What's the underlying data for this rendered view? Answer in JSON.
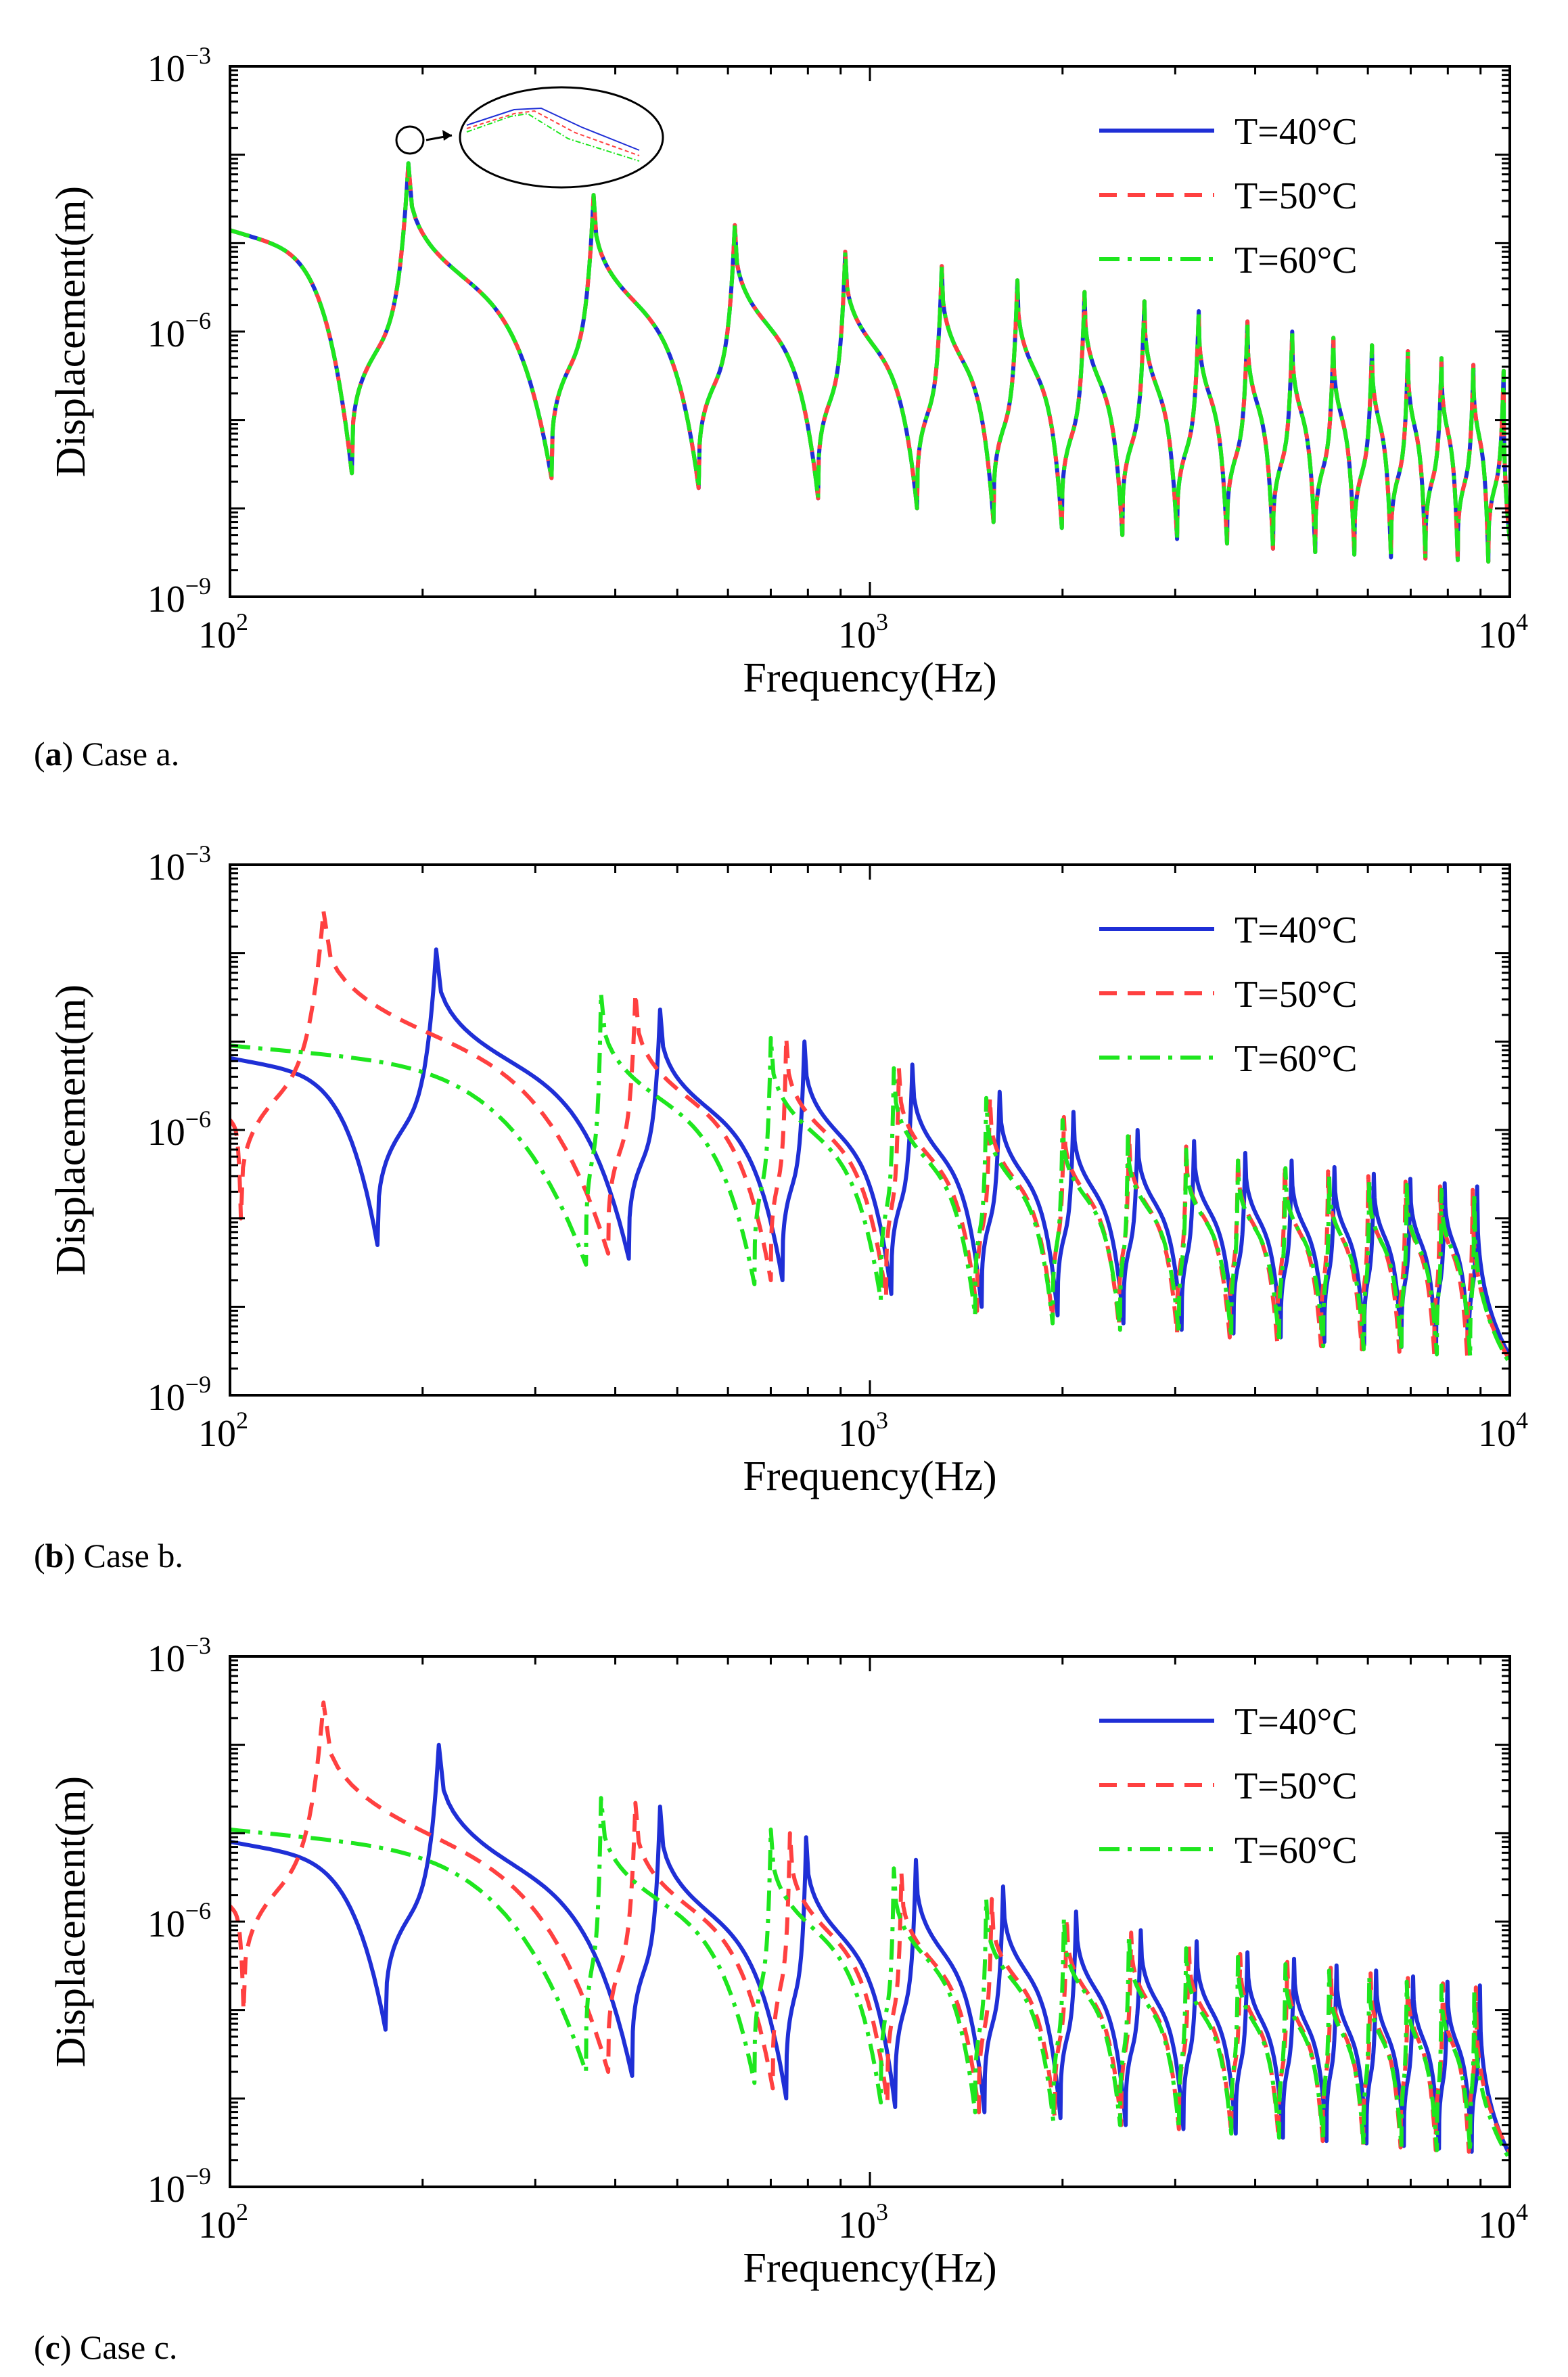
{
  "chart_data": [
    {
      "panel": "a",
      "type": "line",
      "caption_letter": "a",
      "caption_text": " Case a.",
      "xlabel": "Frequency(Hz)",
      "ylabel": "Displacement(m)",
      "xscale": "log",
      "yscale": "log",
      "xlim": [
        100,
        10000
      ],
      "ylim": [
        1e-09,
        0.001
      ],
      "x_ticks": [
        {
          "base": "10",
          "exp": "2",
          "value": 100
        },
        {
          "base": "10",
          "exp": "3",
          "value": 1000
        },
        {
          "base": "10",
          "exp": "4",
          "value": 10000
        }
      ],
      "y_ticks": [
        {
          "base": "10",
          "exp": "−3",
          "value": 0.001
        },
        {
          "base": "10",
          "exp": "−6",
          "value": 1e-06
        },
        {
          "base": "10",
          "exp": "−9",
          "value": 1e-09
        }
      ],
      "legend": "top-right",
      "has_zoom_inset": true,
      "series": [
        {
          "name": "T=40°C",
          "color": "#1f2fd6",
          "style": "solid",
          "start": 1.4e-05,
          "resonances": [
            190,
            370,
            615,
            915,
            1295,
            1700,
            2165,
            2685,
            3265,
            3890,
            4570,
            5300,
            6090,
            6930,
            7820,
            8770,
            9780
          ],
          "anti_resonances": [
            155,
            318,
            540,
            830,
            1185,
            1560,
            1995,
            2480,
            3020,
            3615,
            4265,
            4965,
            5715,
            6520,
            7380,
            8290,
            9255
          ],
          "res_peaks": [
            8e-05,
            3.5e-05,
            1.6e-05,
            8e-06,
            5.5e-06,
            3.8e-06,
            2.8e-06,
            2.2e-06,
            1.7e-06,
            1.3e-06,
            1e-06,
            8.5e-07,
            7e-07,
            6e-07,
            5e-07,
            4.2e-07,
            3.6e-07
          ],
          "anti_dips": [
            2.5e-08,
            2.2e-08,
            1.7e-08,
            1.3e-08,
            1e-08,
            7e-09,
            6e-09,
            5e-09,
            4.5e-09,
            4e-09,
            3.5e-09,
            3.2e-09,
            3e-09,
            2.8e-09,
            2.7e-09,
            2.6e-09,
            2.5e-09
          ]
        },
        {
          "name": "T=50°C",
          "color": "#ff4040",
          "style": "dashed",
          "start": 1.4e-05,
          "resonances": [
            190,
            370,
            615,
            915,
            1295,
            1700,
            2165,
            2685,
            3265,
            3890,
            4570,
            5300,
            6090,
            6930,
            7820,
            8770,
            9780
          ],
          "anti_resonances": [
            155,
            318,
            540,
            830,
            1185,
            1560,
            1995,
            2480,
            3020,
            3615,
            4265,
            4965,
            5715,
            6520,
            7380,
            8290,
            9255
          ],
          "res_peaks": [
            8e-05,
            3.5e-05,
            1.6e-05,
            8e-06,
            5.5e-06,
            3.8e-06,
            2.8e-06,
            2.2e-06,
            1.7e-06,
            1.3e-06,
            1e-06,
            8.5e-07,
            7e-07,
            6e-07,
            5e-07,
            4.2e-07,
            3.6e-07
          ],
          "anti_dips": [
            2.5e-08,
            2.2e-08,
            1.7e-08,
            1.3e-08,
            1e-08,
            7e-09,
            6e-09,
            5e-09,
            4.5e-09,
            4e-09,
            3.5e-09,
            3.2e-09,
            3e-09,
            2.8e-09,
            2.7e-09,
            2.6e-09,
            2.5e-09
          ]
        },
        {
          "name": "T=60°C",
          "color": "#1ee61e",
          "style": "dashdot",
          "start": 1.4e-05,
          "resonances": [
            190,
            370,
            615,
            915,
            1295,
            1700,
            2165,
            2685,
            3265,
            3890,
            4570,
            5300,
            6090,
            6930,
            7820,
            8770,
            9780
          ],
          "anti_resonances": [
            155,
            318,
            540,
            830,
            1185,
            1560,
            1995,
            2480,
            3020,
            3615,
            4265,
            4965,
            5715,
            6520,
            7380,
            8290,
            9255
          ],
          "res_peaks": [
            8e-05,
            3.5e-05,
            1.6e-05,
            8e-06,
            5.5e-06,
            3.8e-06,
            2.8e-06,
            2.2e-06,
            1.7e-06,
            1.3e-06,
            1e-06,
            8.5e-07,
            7e-07,
            6e-07,
            5e-07,
            4.2e-07,
            3.6e-07
          ],
          "anti_dips": [
            2.5e-08,
            2.2e-08,
            1.7e-08,
            1.3e-08,
            1e-08,
            7e-09,
            6e-09,
            5e-09,
            4.5e-09,
            4e-09,
            3.5e-09,
            3.2e-09,
            3e-09,
            2.8e-09,
            2.7e-09,
            2.6e-09,
            2.5e-09
          ]
        }
      ]
    },
    {
      "panel": "b",
      "type": "line",
      "caption_letter": "b",
      "caption_text": " Case b.",
      "xlabel": "Frequency(Hz)",
      "ylabel": "Displacement(m)",
      "xscale": "log",
      "yscale": "log",
      "xlim": [
        100,
        10000
      ],
      "ylim": [
        1e-09,
        0.001
      ],
      "x_ticks": [
        {
          "base": "10",
          "exp": "2",
          "value": 100
        },
        {
          "base": "10",
          "exp": "3",
          "value": 1000
        },
        {
          "base": "10",
          "exp": "4",
          "value": 10000
        }
      ],
      "y_ticks": [
        {
          "base": "10",
          "exp": "−3",
          "value": 0.001
        },
        {
          "base": "10",
          "exp": "−6",
          "value": 1e-06
        },
        {
          "base": "10",
          "exp": "−9",
          "value": 1e-09
        }
      ],
      "legend": "top-right",
      "has_zoom_inset": false,
      "series": [
        {
          "name": "T=40°C",
          "color": "#1f2fd6",
          "style": "solid",
          "start": 6.5e-06,
          "resonances": [
            210,
            470,
            790,
            1165,
            1595,
            2080,
            2620,
            3210,
            3860,
            4560,
            5320,
            6130,
            6990,
            7910,
            8890
          ],
          "anti_resonances": [
            170,
            420,
            730,
            1080,
            1495,
            1965,
            2490,
            3070,
            3700,
            4385,
            5130,
            5920,
            6770,
            7670,
            8630
          ],
          "res_peaks": [
            0.00011,
            2.3e-05,
            1e-05,
            5.5e-06,
            2.7e-06,
            1.6e-06,
            1e-06,
            7.5e-07,
            5.5e-07,
            4.5e-07,
            3.8e-07,
            3.2e-07,
            2.8e-07,
            2.5e-07,
            2.3e-07
          ],
          "anti_dips": [
            5e-08,
            3.5e-08,
            2e-08,
            1.4e-08,
            1e-08,
            8e-09,
            6.5e-09,
            5.5e-09,
            5e-09,
            4.5e-09,
            4e-09,
            3.7e-09,
            3.5e-09,
            3.2e-09,
            3e-09
          ]
        },
        {
          "name": "T=50°C",
          "color": "#ff4040",
          "style": "dashed",
          "start": 1.3e-06,
          "resonances": [
            140,
            430,
            740,
            1110,
            1540,
            2010,
            2540,
            3120,
            3760,
            4450,
            5200,
            6010,
            6870,
            7780,
            8750
          ],
          "anti_resonances": [
            104,
            390,
            700,
            1060,
            1470,
            1930,
            2450,
            3020,
            3650,
            4330,
            5070,
            5870,
            6720,
            7620,
            8580
          ],
          "res_peaks": [
            0.0003,
            3.5e-05,
            1.1e-05,
            5e-06,
            2.3e-06,
            1.4e-06,
            9e-07,
            6.5e-07,
            5e-07,
            4e-07,
            3.4e-07,
            3e-07,
            2.6e-07,
            2.3e-07,
            2.1e-07
          ],
          "anti_dips": [
            1e-07,
            4e-08,
            2e-08,
            1.3e-08,
            9e-09,
            7e-09,
            6e-09,
            5e-09,
            4.5e-09,
            4e-09,
            3.6e-09,
            3.3e-09,
            3.1e-09,
            2.9e-09,
            2.7e-09
          ],
          "end": 2.5e-09
        },
        {
          "name": "T=60°C",
          "color": "#1ee61e",
          "style": "dashdot",
          "start": 9e-06,
          "resonances": [
            380,
            700,
            1090,
            1520,
            2000,
            2530,
            3120,
            3760,
            4460,
            5220,
            6030,
            6900,
            7820,
            8800
          ],
          "anti_resonances": [
            360,
            660,
            1040,
            1460,
            1930,
            2460,
            3040,
            3670,
            4360,
            5110,
            5910,
            6770,
            7690,
            8670
          ],
          "res_peaks": [
            3.5e-05,
            1.1e-05,
            5e-06,
            2.3e-06,
            1.3e-06,
            8.5e-07,
            6e-07,
            4.5e-07,
            3.7e-07,
            3.1e-07,
            2.7e-07,
            2.4e-07,
            2.1e-07,
            1.9e-07
          ],
          "anti_dips": [
            3e-08,
            1.8e-08,
            1.2e-08,
            8e-09,
            6.5e-09,
            5.5e-09,
            5e-09,
            4.5e-09,
            4e-09,
            3.6e-09,
            3.3e-09,
            3.1e-09,
            2.9e-09,
            2.7e-09
          ]
        }
      ]
    },
    {
      "panel": "c",
      "type": "line",
      "caption_letter": "c",
      "caption_text": " Case c.",
      "xlabel": "Frequency(Hz)",
      "ylabel": "Displacement(m)",
      "xscale": "log",
      "yscale": "log",
      "xlim": [
        100,
        10000
      ],
      "ylim": [
        1e-09,
        0.001
      ],
      "x_ticks": [
        {
          "base": "10",
          "exp": "2",
          "value": 100
        },
        {
          "base": "10",
          "exp": "3",
          "value": 1000
        },
        {
          "base": "10",
          "exp": "4",
          "value": 10000
        }
      ],
      "y_ticks": [
        {
          "base": "10",
          "exp": "−3",
          "value": 0.001
        },
        {
          "base": "10",
          "exp": "−6",
          "value": 1e-06
        },
        {
          "base": "10",
          "exp": "−9",
          "value": 1e-09
        }
      ],
      "legend": "top-right",
      "has_zoom_inset": false,
      "series": [
        {
          "name": "T=40°C",
          "color": "#1f2fd6",
          "style": "solid",
          "start": 8e-06,
          "resonances": [
            212,
            470,
            795,
            1180,
            1615,
            2100,
            2650,
            3240,
            3890,
            4600,
            5360,
            6180,
            7060,
            7990,
            8980
          ],
          "anti_resonances": [
            175,
            425,
            740,
            1095,
            1510,
            1985,
            2510,
            3090,
            3730,
            4420,
            5170,
            5970,
            6830,
            7750,
            8720
          ],
          "res_peaks": [
            0.0001,
            2e-05,
            9e-06,
            5e-06,
            2.5e-06,
            1.3e-06,
            8e-07,
            6e-07,
            4.5e-07,
            3.8e-07,
            3.2e-07,
            2.8e-07,
            2.4e-07,
            2.1e-07,
            1.9e-07
          ],
          "anti_dips": [
            6e-08,
            1.8e-08,
            1e-08,
            8e-09,
            7e-09,
            6e-09,
            5e-09,
            4.5e-09,
            4e-09,
            3.6e-09,
            3.3e-09,
            3.1e-09,
            2.9e-09,
            2.7e-09,
            2.5e-09
          ]
        },
        {
          "name": "T=50°C",
          "color": "#ff4040",
          "style": "dashed",
          "start": 1.5e-06,
          "resonances": [
            140,
            430,
            750,
            1120,
            1550,
            2030,
            2560,
            3150,
            3790,
            4490,
            5250,
            6060,
            6930,
            7860,
            8850
          ],
          "anti_resonances": [
            105,
            390,
            705,
            1065,
            1480,
            1945,
            2470,
            3040,
            3670,
            4350,
            5100,
            5900,
            6750,
            7660,
            8630
          ],
          "res_peaks": [
            0.0003,
            2.2e-05,
            1e-05,
            3.5e-06,
            1.8e-06,
            1.1e-06,
            7.5e-07,
            5.5e-07,
            4.3e-07,
            3.5e-07,
            3e-07,
            2.6e-07,
            2.3e-07,
            2e-07,
            1.8e-07
          ],
          "anti_dips": [
            1e-07,
            2e-08,
            1.3e-08,
            9e-09,
            7e-09,
            6e-09,
            5e-09,
            4.5e-09,
            4e-09,
            3.6e-09,
            3.3e-09,
            3e-09,
            2.8e-09,
            2.6e-09,
            2.5e-09
          ],
          "end": 2.5e-09
        },
        {
          "name": "T=60°C",
          "color": "#1ee61e",
          "style": "dashdot",
          "start": 1.1e-05,
          "resonances": [
            380,
            700,
            1090,
            1520,
            2010,
            2540,
            3120,
            3760,
            4460,
            5220,
            6030,
            6900,
            7820,
            8800
          ],
          "anti_resonances": [
            360,
            660,
            1040,
            1460,
            1935,
            2460,
            3040,
            3670,
            4360,
            5110,
            5910,
            6770,
            7690,
            8670
          ],
          "res_peaks": [
            2.5e-05,
            1.1e-05,
            4e-06,
            1.8e-06,
            1.1e-06,
            7e-07,
            5e-07,
            4e-07,
            3.3e-07,
            2.8e-07,
            2.4e-07,
            2.1e-07,
            1.9e-07,
            1.7e-07
          ],
          "anti_dips": [
            2e-08,
            1.5e-08,
            9e-09,
            7e-09,
            5.5e-09,
            5e-09,
            4.5e-09,
            4e-09,
            3.6e-09,
            3.3e-09,
            3e-09,
            2.8e-09,
            2.6e-09,
            2.5e-09
          ]
        }
      ]
    }
  ]
}
